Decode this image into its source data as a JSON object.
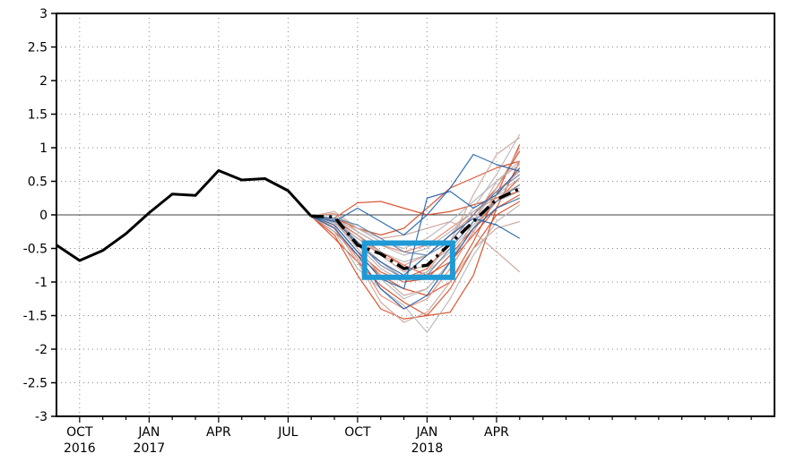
{
  "chart_data": {
    "type": "line",
    "title": "",
    "xlabel": "",
    "ylabel": "",
    "ylim": [
      -3,
      3
    ],
    "yticks": [
      "3",
      "2.5",
      "2",
      "1.5",
      "1",
      "0.5",
      "0",
      "-0.5",
      "-1",
      "-1.5",
      "-2",
      "-2.5",
      "-3"
    ],
    "ytick_values": [
      3,
      2.5,
      2,
      1.5,
      1,
      0.5,
      0,
      -0.5,
      -1,
      -1.5,
      -2,
      -2.5,
      -3
    ],
    "x_month_range": [
      -1,
      30
    ],
    "xticks": [
      {
        "month": 0,
        "label": "OCT",
        "year": "2016"
      },
      {
        "month": 3,
        "label": "JAN",
        "year": "2017"
      },
      {
        "month": 6,
        "label": "APR",
        "year": ""
      },
      {
        "month": 9,
        "label": "JUL",
        "year": ""
      },
      {
        "month": 12,
        "label": "OCT",
        "year": ""
      },
      {
        "month": 15,
        "label": "JAN",
        "year": "2018"
      },
      {
        "month": 18,
        "label": "APR",
        "year": ""
      }
    ],
    "grid": true,
    "zero_line": true,
    "observed": {
      "color": "#000000",
      "x": [
        -1,
        0,
        1,
        2,
        3,
        4,
        5,
        6,
        7,
        8,
        9,
        10
      ],
      "y": [
        -0.45,
        -0.68,
        -0.53,
        -0.28,
        0.03,
        0.31,
        0.29,
        0.66,
        0.52,
        0.54,
        0.36,
        -0.02
      ]
    },
    "ensemble_mean": {
      "color": "#000000",
      "style": "dashed",
      "x": [
        10,
        11,
        12,
        13,
        14,
        15,
        16,
        17,
        18,
        19
      ],
      "y": [
        -0.02,
        -0.03,
        -0.45,
        -0.58,
        -0.8,
        -0.75,
        -0.43,
        -0.1,
        0.23,
        0.39
      ]
    },
    "members": [
      {
        "color": "#d6461f",
        "y": [
          -0.02,
          -0.35,
          -0.7,
          -1.05,
          -1.3,
          -1.5,
          -1.45,
          -0.9,
          0.1,
          0.8
        ]
      },
      {
        "color": "#d6461f",
        "y": [
          -0.02,
          -0.25,
          -0.6,
          -0.9,
          -1.1,
          -1.2,
          -1.0,
          -0.4,
          0.3,
          1.05
        ]
      },
      {
        "color": "#d6461f",
        "y": [
          -0.02,
          -0.05,
          0.18,
          0.2,
          0.1,
          0.0,
          0.05,
          0.15,
          0.25,
          0.35
        ]
      },
      {
        "color": "#d6461f",
        "y": [
          -0.02,
          -0.05,
          -0.2,
          -0.3,
          -0.2,
          0.1,
          0.4,
          0.55,
          0.7,
          0.8
        ]
      },
      {
        "color": "#d6461f",
        "y": [
          -0.02,
          -0.1,
          -0.4,
          -0.7,
          -0.95,
          -0.8,
          -0.4,
          0.0,
          0.4,
          0.95
        ]
      },
      {
        "color": "#d6461f",
        "y": [
          -0.02,
          -0.3,
          -0.9,
          -1.4,
          -1.55,
          -1.5,
          -1.1,
          -0.5,
          0.0,
          0.2
        ]
      },
      {
        "color": "#d6461f",
        "y": [
          -0.02,
          -0.08,
          -0.3,
          -0.55,
          -0.75,
          -0.9,
          -0.7,
          -0.3,
          0.1,
          0.3
        ]
      },
      {
        "color": "#d6461f",
        "y": [
          -0.02,
          -0.15,
          -0.55,
          -0.85,
          -1.0,
          -0.95,
          -0.6,
          -0.2,
          0.2,
          0.55
        ]
      },
      {
        "color": "#e8866a",
        "y": [
          -0.02,
          -0.1,
          -0.35,
          -0.6,
          -0.75,
          -0.6,
          -0.3,
          0.0,
          0.35,
          0.65
        ]
      },
      {
        "color": "#e8866a",
        "y": [
          -0.02,
          -0.18,
          -0.65,
          -1.2,
          -1.4,
          -1.25,
          -0.8,
          -0.25,
          0.3,
          0.7
        ]
      },
      {
        "color": "#e8866a",
        "y": [
          -0.02,
          0.02,
          -0.25,
          -0.45,
          -0.55,
          -0.45,
          -0.2,
          0.05,
          0.25,
          0.45
        ]
      },
      {
        "color": "#c9a49a",
        "y": [
          -0.02,
          -0.12,
          -0.45,
          -0.8,
          -1.0,
          -0.85,
          -0.4,
          0.3,
          0.9,
          1.15
        ]
      },
      {
        "color": "#c9a49a",
        "y": [
          -0.02,
          -0.05,
          -0.3,
          -0.6,
          -0.85,
          -0.75,
          -0.5,
          -0.1,
          0.4,
          1.0
        ]
      },
      {
        "color": "#c9a49a",
        "y": [
          -0.02,
          -0.2,
          -0.7,
          -1.3,
          -1.6,
          -1.45,
          -1.0,
          -0.5,
          -0.2,
          -0.1
        ]
      },
      {
        "color": "#c9a49a",
        "y": [
          -0.02,
          0.05,
          -0.2,
          -0.35,
          -0.3,
          -0.2,
          -0.1,
          -0.25,
          -0.55,
          -0.85
        ]
      },
      {
        "color": "#c9a49a",
        "y": [
          -0.02,
          -0.1,
          -0.5,
          -0.9,
          -1.2,
          -1.1,
          -0.7,
          -0.1,
          0.5,
          0.75
        ]
      },
      {
        "color": "#b5b5b5",
        "y": [
          -0.02,
          -0.08,
          -0.35,
          -0.55,
          -0.7,
          -0.6,
          -0.3,
          0.1,
          0.6,
          1.2
        ]
      },
      {
        "color": "#b5b5b5",
        "y": [
          -0.02,
          -0.15,
          -0.55,
          -0.95,
          -1.25,
          -1.1,
          -0.7,
          -0.2,
          0.3,
          0.55
        ]
      },
      {
        "color": "#b5b5b5",
        "y": [
          -0.02,
          0.0,
          -0.2,
          -0.4,
          -0.5,
          -0.35,
          -0.1,
          0.2,
          0.5,
          0.8
        ]
      },
      {
        "color": "#b5b5b5",
        "y": [
          -0.02,
          -0.25,
          -0.8,
          -1.1,
          -1.35,
          -1.75,
          -1.25,
          -0.6,
          -0.1,
          0.15
        ]
      },
      {
        "color": "#b5b5b5",
        "y": [
          -0.02,
          -0.05,
          -0.25,
          -0.45,
          -0.6,
          -0.5,
          -0.25,
          0.05,
          0.3,
          0.4
        ]
      },
      {
        "color": "#b5b5b5",
        "y": [
          -0.02,
          -0.12,
          -0.4,
          -0.7,
          -0.95,
          -0.85,
          -0.55,
          -0.15,
          0.2,
          0.35
        ]
      },
      {
        "color": "#1f5fa8",
        "y": [
          -0.02,
          -0.1,
          0.1,
          -0.1,
          -0.3,
          0.0,
          0.4,
          0.9,
          0.75,
          0.65
        ]
      },
      {
        "color": "#1f5fa8",
        "y": [
          -0.02,
          -0.2,
          -0.6,
          -1.1,
          -1.4,
          -1.2,
          -0.7,
          -0.2,
          0.1,
          0.25
        ]
      },
      {
        "color": "#1f5fa8",
        "y": [
          -0.02,
          -0.05,
          -0.45,
          -0.7,
          -0.9,
          -0.6,
          -0.3,
          -0.05,
          -0.15,
          -0.35
        ]
      },
      {
        "color": "#1f5fa8",
        "y": [
          -0.02,
          -0.15,
          -0.55,
          -0.95,
          -1.1,
          0.25,
          0.35,
          0.1,
          0.3,
          0.7
        ]
      },
      {
        "color": "#5f7fae",
        "y": [
          -0.02,
          -0.08,
          -0.4,
          -0.75,
          -0.95,
          -0.9,
          -0.5,
          -0.1,
          0.2,
          0.45
        ]
      },
      {
        "color": "#5f7fae",
        "y": [
          -0.02,
          -0.05,
          -0.15,
          -0.35,
          -0.55,
          -0.6,
          -0.4,
          0.0,
          0.35,
          0.6
        ]
      }
    ],
    "member_x": [
      10,
      11,
      12,
      13,
      14,
      15,
      16,
      17,
      18,
      19
    ],
    "highlight_box": {
      "color": "#1e9ad6",
      "x_start": 12.3,
      "x_end": 16.1,
      "y_top": -0.42,
      "y_bottom": -0.93
    }
  }
}
